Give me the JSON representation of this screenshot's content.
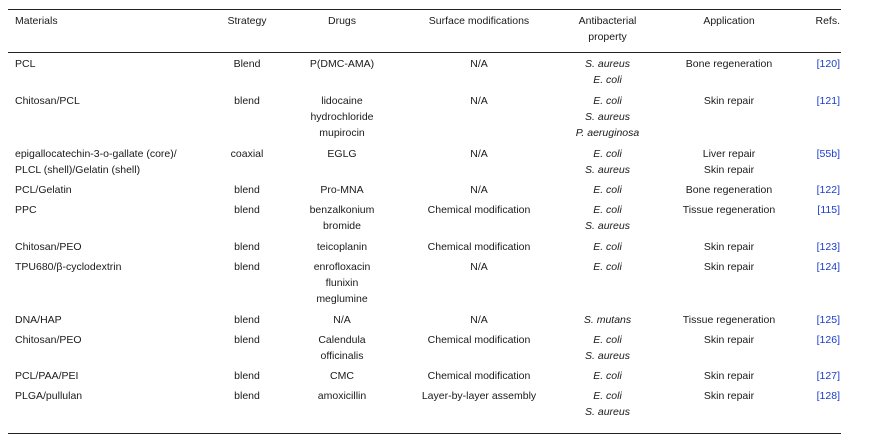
{
  "headers": {
    "materials": "Materials",
    "strategy": "Strategy",
    "drugs": "Drugs",
    "surface": "Surface modifications",
    "antibacterial": [
      "Antibacterial",
      "property"
    ],
    "application": "Application",
    "refs": "Refs."
  },
  "rows": [
    {
      "materials": [
        "PCL"
      ],
      "strategy": "Blend",
      "drugs": [
        "P(DMC-AMA)"
      ],
      "surface": "N/A",
      "antibacterial": [
        "S. aureus",
        "E. coli"
      ],
      "application": [
        "Bone regeneration"
      ],
      "ref": "[120]"
    },
    {
      "materials": [
        "Chitosan/PCL"
      ],
      "strategy": "blend",
      "drugs": [
        "lidocaine",
        "hydrochloride",
        "mupirocin"
      ],
      "surface": "N/A",
      "antibacterial": [
        "E. coli",
        "S. aureus",
        "P. aeruginosa"
      ],
      "application": [
        "Skin repair"
      ],
      "ref": "[121]"
    },
    {
      "materials": [
        "epigallocatechin-3-o-gallate (core)/",
        "PLCL (shell)/Gelatin (shell)"
      ],
      "strategy": "coaxial",
      "drugs": [
        "EGLG"
      ],
      "surface": "N/A",
      "antibacterial": [
        "E. coli",
        "S. aureus"
      ],
      "application": [
        "Liver repair",
        "Skin repair"
      ],
      "ref": "[55b]"
    },
    {
      "materials": [
        "PCL/Gelatin"
      ],
      "strategy": "blend",
      "drugs": [
        "Pro-MNA"
      ],
      "surface": "N/A",
      "antibacterial": [
        "E. coli"
      ],
      "application": [
        "Bone regeneration"
      ],
      "ref": "[122]"
    },
    {
      "materials": [
        "PPC"
      ],
      "strategy": "blend",
      "drugs": [
        "benzalkonium",
        "bromide"
      ],
      "surface": "Chemical modification",
      "antibacterial": [
        "E. coli",
        "S. aureus"
      ],
      "application": [
        "Tissue regeneration"
      ],
      "ref": "[115]"
    },
    {
      "materials": [
        "Chitosan/PEO"
      ],
      "strategy": "blend",
      "drugs": [
        "teicoplanin"
      ],
      "surface": "Chemical modification",
      "antibacterial": [
        "E. coli"
      ],
      "application": [
        "Skin repair"
      ],
      "ref": "[123]"
    },
    {
      "materials": [
        "TPU680/β-cyclodextrin"
      ],
      "strategy": "blend",
      "drugs": [
        "enrofloxacin",
        "flunixin",
        "meglumine"
      ],
      "surface": "N/A",
      "antibacterial": [
        "E. coli"
      ],
      "application": [
        "Skin repair"
      ],
      "ref": "[124]"
    },
    {
      "materials": [
        "DNA/HAP"
      ],
      "strategy": "blend",
      "drugs": [
        "N/A"
      ],
      "surface": "N/A",
      "antibacterial": [
        "S. mutans"
      ],
      "application": [
        "Tissue regeneration"
      ],
      "ref": "[125]"
    },
    {
      "materials": [
        "Chitosan/PEO"
      ],
      "strategy": "blend",
      "drugs": [
        "Calendula",
        "officinalis"
      ],
      "surface": "Chemical modification",
      "antibacterial": [
        "E. coli",
        "S. aureus"
      ],
      "application": [
        "Skin repair"
      ],
      "ref": "[126]"
    },
    {
      "materials": [
        "PCL/PAA/PEI"
      ],
      "strategy": "blend",
      "drugs": [
        "CMC"
      ],
      "surface": "Chemical modification",
      "antibacterial": [
        "E. coli"
      ],
      "application": [
        "Skin repair"
      ],
      "ref": "[127]"
    },
    {
      "materials": [
        "PLGA/pullulan"
      ],
      "strategy": "blend",
      "drugs": [
        "amoxicillin"
      ],
      "surface": "Layer-by-layer assembly",
      "antibacterial": [
        "E. coli",
        "S. aureus"
      ],
      "application": [
        "Skin repair"
      ],
      "ref": "[128]"
    }
  ]
}
